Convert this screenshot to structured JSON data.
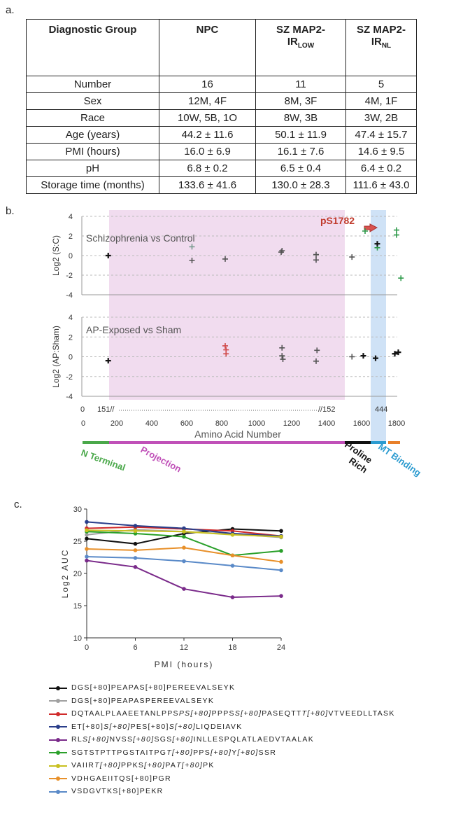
{
  "panels": {
    "a": "a.",
    "b": "b.",
    "c": "c."
  },
  "table": {
    "headers": [
      "Diagnostic Group",
      "NPC",
      "SZ MAP2-IR_LOW",
      "SZ MAP2-IR_NL"
    ],
    "header_parts": {
      "sz_low_main": "SZ MAP2-",
      "sz_low_line2": "IR",
      "sz_low_sub": "LOW",
      "sz_nl_main": "SZ MAP2-",
      "sz_nl_line2": "IR",
      "sz_nl_sub": "NL"
    },
    "rows": [
      {
        "label": "Number",
        "npc": "16",
        "low": "11",
        "nl": "5"
      },
      {
        "label": "Sex",
        "npc": "12M, 4F",
        "low": "8M, 3F",
        "nl": "4M, 1F"
      },
      {
        "label": "Race",
        "npc": "10W, 5B, 1O",
        "low": "8W, 3B",
        "nl": "3W, 2B"
      },
      {
        "label": "Age (years)",
        "npc": "44.2 ± 11.6",
        "low": "50.1 ± 11.9",
        "nl": "47.4 ± 15.7"
      },
      {
        "label": "PMI (hours)",
        "npc": "16.0 ± 6.9",
        "low": "16.1 ± 7.6",
        "nl": "14.6 ± 9.5"
      },
      {
        "label": "pH",
        "npc": "6.8 ± 0.2",
        "low": "6.5 ± 0.4",
        "nl": "6.4 ± 0.2"
      },
      {
        "label": "Storage time (months)",
        "npc": "133.6 ± 41.6",
        "low": "130.0 ± 28.3",
        "nl": "111.6 ± 43.0"
      }
    ]
  },
  "chart_data": [
    {
      "type": "scatter",
      "title": "Schizophrenia vs Control",
      "ylabel": "Log2 (S:C)",
      "ylim": [
        -4,
        4
      ],
      "yticks": [
        4,
        2,
        0,
        -2,
        -4
      ],
      "annotation": "pS1782",
      "points": [
        {
          "x": 151,
          "y": 0.0,
          "color": "#111111"
        },
        {
          "x": 630,
          "y": 0.9,
          "color": "#7a9a90"
        },
        {
          "x": 630,
          "y": -0.5,
          "color": "#555555"
        },
        {
          "x": 820,
          "y": -0.35,
          "color": "#555555"
        },
        {
          "x": 1140,
          "y": 0.35,
          "color": "#555555"
        },
        {
          "x": 1145,
          "y": 0.5,
          "color": "#555555"
        },
        {
          "x": 1340,
          "y": 0.1,
          "color": "#555555"
        },
        {
          "x": 1340,
          "y": -0.45,
          "color": "#555555"
        },
        {
          "x": 1545,
          "y": -0.15,
          "color": "#555555"
        },
        {
          "x": 1620,
          "y": 2.5,
          "color": "#2e9a4a"
        },
        {
          "x": 1690,
          "y": 0.8,
          "color": "#2e9a4a"
        },
        {
          "x": 1690,
          "y": 1.2,
          "color": "#111111"
        },
        {
          "x": 1800,
          "y": 2.6,
          "color": "#2e9a4a"
        },
        {
          "x": 1800,
          "y": 2.1,
          "color": "#2e9a4a"
        },
        {
          "x": 1825,
          "y": -2.3,
          "color": "#2e9a4a"
        }
      ]
    },
    {
      "type": "scatter",
      "title": "AP-Exposed vs Sham",
      "ylabel": "Log2 (AP:Sham)",
      "ylim": [
        -4,
        4
      ],
      "yticks": [
        4,
        2,
        0,
        -2,
        -4
      ],
      "points": [
        {
          "x": 151,
          "y": -0.4,
          "color": "#111111"
        },
        {
          "x": 820,
          "y": 1.1,
          "color": "#d04848"
        },
        {
          "x": 825,
          "y": 0.7,
          "color": "#d04848"
        },
        {
          "x": 825,
          "y": 0.3,
          "color": "#d04848"
        },
        {
          "x": 1145,
          "y": 0.9,
          "color": "#555555"
        },
        {
          "x": 1145,
          "y": 0.1,
          "color": "#555555"
        },
        {
          "x": 1150,
          "y": -0.25,
          "color": "#555555"
        },
        {
          "x": 1345,
          "y": 0.65,
          "color": "#555555"
        },
        {
          "x": 1340,
          "y": -0.45,
          "color": "#555555"
        },
        {
          "x": 1545,
          "y": 0.0,
          "color": "#555555"
        },
        {
          "x": 1610,
          "y": 0.1,
          "color": "#111111"
        },
        {
          "x": 1680,
          "y": -0.15,
          "color": "#111111"
        },
        {
          "x": 1790,
          "y": 0.3,
          "color": "#111111"
        },
        {
          "x": 1810,
          "y": 0.45,
          "color": "#111111"
        }
      ],
      "xlabel": "Amino Acid Number",
      "xticks": [
        "0",
        "200",
        "400",
        "600",
        "800",
        "1000",
        "1200",
        "1400",
        "1600",
        "1800"
      ],
      "xlim": [
        0,
        1850
      ],
      "break_labels": {
        "left": "151//",
        "right": "//152",
        "mt": "444",
        "zero": "0"
      },
      "domains": [
        {
          "name": "N Terminal",
          "color": "#4aa84a"
        },
        {
          "name": "Projection",
          "color": "#c050b8"
        },
        {
          "name": "Proline Rich",
          "color": "#111111"
        },
        {
          "name": "MT Binding",
          "color": "#2b9bd0"
        }
      ]
    },
    {
      "type": "line",
      "title": "",
      "xlabel": "PMI (hours)",
      "ylabel": "Log2 AUC",
      "xlim": [
        0,
        24
      ],
      "ylim": [
        10,
        30
      ],
      "xticks": [
        0,
        6,
        12,
        18,
        24
      ],
      "yticks": [
        10,
        15,
        20,
        25,
        30
      ],
      "x": [
        0,
        6,
        12,
        18,
        24
      ],
      "series": [
        {
          "name": "DGS[+80]PEAPAS[+80]PEREEVALSEYK",
          "color": "#111111",
          "values": [
            25.4,
            24.6,
            26.2,
            26.9,
            26.6
          ]
        },
        {
          "name": "DGS[+80]PEAPASPEREEVALSEYK",
          "color": "#a0a0a0",
          "values": [
            26.0,
            26.8,
            26.5,
            26.1,
            25.6
          ]
        },
        {
          "name": "DQTAALPLAAEETANLPPSPPPSSPASEQTTVTVEEDLLTASK",
          "color": "#d02a2a",
          "values": [
            27.0,
            27.2,
            26.9,
            26.6,
            25.8
          ]
        },
        {
          "name": "ETSPESSLIQDEIAVK",
          "color": "#2a3e8a",
          "values": [
            28.0,
            27.4,
            27.0,
            26.2,
            25.8
          ]
        },
        {
          "name": "RLSNVSSSGSINLLESPQLATLAEDVTAALAK",
          "color": "#7a2a8a",
          "values": [
            22.0,
            21.0,
            17.6,
            16.3,
            16.5
          ]
        },
        {
          "name": "SGTSTPTTPGSTAITPGTPPSYSSR",
          "color": "#2aa02a",
          "values": [
            26.5,
            26.2,
            25.7,
            22.8,
            23.5
          ]
        },
        {
          "name": "VAIIRTPPKSPATPK",
          "color": "#c8c020",
          "values": [
            26.7,
            26.6,
            26.5,
            26.0,
            25.7
          ]
        },
        {
          "name": "VDHGAEIITQS[+80]PGR",
          "color": "#e8902a",
          "values": [
            23.8,
            23.6,
            24.0,
            22.8,
            21.8
          ]
        },
        {
          "name": "VSDGVTKS[+80]PEKR",
          "color": "#5a8ac8",
          "values": [
            22.6,
            22.4,
            21.9,
            21.2,
            20.5
          ]
        }
      ]
    }
  ],
  "legend_html_labels": [
    [
      {
        "t": "DGS[+80]PEAPAS[+80]PEREEVALSEYK",
        "i": false
      }
    ],
    [
      {
        "t": "DGS[+80]PEAPASPEREEVALSEYK",
        "i": false
      }
    ],
    [
      {
        "t": "DQTAALPLAAEETANLPPS",
        "i": false
      },
      {
        "t": "PS[+80]",
        "i": true
      },
      {
        "t": "PPPS",
        "i": false
      },
      {
        "t": "S[+80]",
        "i": true
      },
      {
        "t": "PASEQTT",
        "i": false
      },
      {
        "t": "T[+80]",
        "i": true
      },
      {
        "t": "VTVEEDLLTASK",
        "i": false
      }
    ],
    [
      {
        "t": "ET[+80]",
        "i": false
      },
      {
        "t": "S[+80]",
        "i": true
      },
      {
        "t": "PES[+80]",
        "i": false
      },
      {
        "t": "S[+80]",
        "i": true
      },
      {
        "t": "LIQDEIAVK",
        "i": false
      }
    ],
    [
      {
        "t": "RL",
        "i": false
      },
      {
        "t": "S[+80]",
        "i": true
      },
      {
        "t": "NVSS",
        "i": false
      },
      {
        "t": "[+80]",
        "i": true
      },
      {
        "t": "SGS",
        "i": false
      },
      {
        "t": "[+80]",
        "i": true
      },
      {
        "t": "INLLESPQLATLAEDVTAALAK",
        "i": false
      }
    ],
    [
      {
        "t": "SGTSTPTTPGSTAITPG",
        "i": false
      },
      {
        "t": "T[+80]",
        "i": true
      },
      {
        "t": "PPS",
        "i": false
      },
      {
        "t": "[+80]",
        "i": true
      },
      {
        "t": "Y",
        "i": false
      },
      {
        "t": "[+80]",
        "i": true
      },
      {
        "t": "SSR",
        "i": false
      }
    ],
    [
      {
        "t": "VAIIR",
        "i": false
      },
      {
        "t": "T[+80]",
        "i": true
      },
      {
        "t": "PPKS",
        "i": false
      },
      {
        "t": "[+80]",
        "i": true
      },
      {
        "t": "PA",
        "i": false
      },
      {
        "t": "T[+80]",
        "i": true
      },
      {
        "t": "PK",
        "i": false
      }
    ],
    [
      {
        "t": "VDHGAEIITQS[+80]PGR",
        "i": false
      }
    ],
    [
      {
        "t": "VSDGVTKS[+80]PEKR",
        "i": false
      }
    ]
  ]
}
